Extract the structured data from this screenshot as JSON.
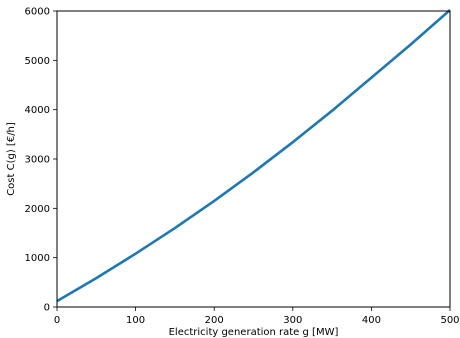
{
  "chart_data": {
    "type": "line",
    "title": "",
    "xlabel": "Electricity generation rate g [MW]",
    "ylabel": "Cost C(g) [€/h]",
    "xlim": [
      0,
      500
    ],
    "ylim": [
      0,
      6000
    ],
    "x_ticks": [
      0,
      100,
      200,
      300,
      400,
      500
    ],
    "y_ticks": [
      0,
      1000,
      2000,
      3000,
      4000,
      5000,
      6000
    ],
    "x_tick_labels": [
      "0",
      "100",
      "200",
      "300",
      "400",
      "500"
    ],
    "y_tick_labels": [
      "0",
      "1000",
      "2000",
      "3000",
      "4000",
      "5000",
      "6000"
    ],
    "grid": false,
    "series": [
      {
        "color": "#1f77b4",
        "x": [
          0,
          50,
          100,
          150,
          200,
          250,
          300,
          350,
          400,
          450,
          500
        ],
        "y": [
          120,
          585,
          1080,
          1600,
          2150,
          2730,
          3340,
          3980,
          4650,
          5320,
          6020
        ]
      }
    ]
  }
}
